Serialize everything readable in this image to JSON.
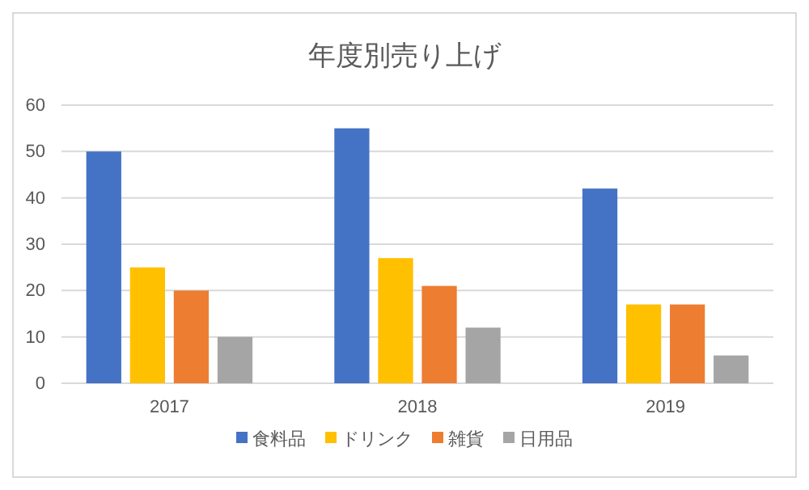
{
  "chart_data": {
    "type": "bar",
    "title": "年度別売り上げ",
    "categories": [
      "2017",
      "2018",
      "2019"
    ],
    "series": [
      {
        "name": "食料品",
        "color": "#4472c4",
        "values": [
          50,
          55,
          42
        ]
      },
      {
        "name": "ドリンク",
        "color": "#ffc000",
        "values": [
          25,
          27,
          17
        ]
      },
      {
        "name": "雑貨",
        "color": "#ed7d31",
        "values": [
          20,
          21,
          17
        ]
      },
      {
        "name": "日用品",
        "color": "#a5a5a5",
        "values": [
          10,
          12,
          6
        ]
      }
    ],
    "ylim": [
      0,
      60
    ],
    "yticks": [
      0,
      10,
      20,
      30,
      40,
      50,
      60
    ],
    "grid": "y",
    "legend": "bottom"
  }
}
